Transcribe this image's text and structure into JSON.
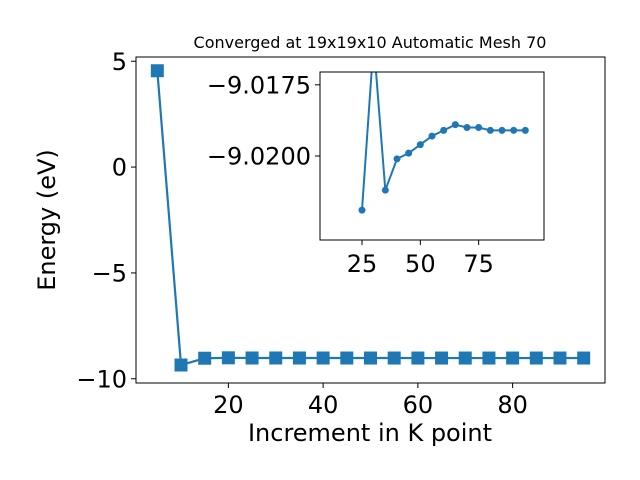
{
  "chart_data": [
    {
      "type": "line",
      "title": "Converged at 19x19x10 Automatic Mesh 70",
      "xlabel": "Increment in K point",
      "ylabel": "Energy (eV)",
      "xlim": [
        0.5,
        99.5
      ],
      "ylim": [
        -10.2,
        5.2
      ],
      "xticks": [
        20,
        40,
        60,
        80
      ],
      "yticks": [
        5,
        0,
        -5,
        -10
      ],
      "xtick_labels": [
        "20",
        "40",
        "60",
        "80"
      ],
      "ytick_labels": [
        "5",
        "0",
        "−5",
        "−10"
      ],
      "grid": false,
      "marker": "square",
      "color": "#1f77b4",
      "series": [
        {
          "x": [
            5,
            10,
            15,
            20,
            25,
            30,
            35,
            40,
            45,
            50,
            55,
            60,
            65,
            70,
            75,
            80,
            85,
            90,
            95
          ],
          "y": [
            4.55,
            -9.35,
            -9.03,
            -9.01,
            -9.019,
            -9.018,
            -9.0195,
            -9.0199,
            -9.02,
            -9.0203,
            -9.0205,
            -9.0207,
            -9.0209,
            -9.0208,
            -9.0208,
            -9.0207,
            -9.0207,
            -9.0207,
            -9.0206
          ]
        }
      ]
    },
    {
      "type": "line",
      "title": "",
      "xlabel": "",
      "ylabel": "",
      "xlim": [
        7,
        103
      ],
      "ylim": [
        -9.02295,
        -9.01705
      ],
      "xticks": [
        25,
        50,
        75
      ],
      "yticks": [
        -9.02,
        -9.0175
      ],
      "xtick_labels": [
        "25",
        "50",
        "75"
      ],
      "ytick_labels": [
        "−9.0200",
        "−9.0175"
      ],
      "grid": false,
      "marker": "circle",
      "color": "#1f77b4",
      "series": [
        {
          "x": [
            25,
            30,
            35,
            40,
            45,
            50,
            55,
            60,
            65,
            70,
            75,
            80,
            85,
            90,
            95
          ],
          "y": [
            -9.0219,
            -9.016,
            -9.0212,
            -9.0201,
            -9.0199,
            -9.0196,
            -9.0193,
            -9.0191,
            -9.0189,
            -9.019,
            -9.019,
            -9.0191,
            -9.0191,
            -9.0191,
            -9.0191
          ]
        }
      ]
    }
  ]
}
